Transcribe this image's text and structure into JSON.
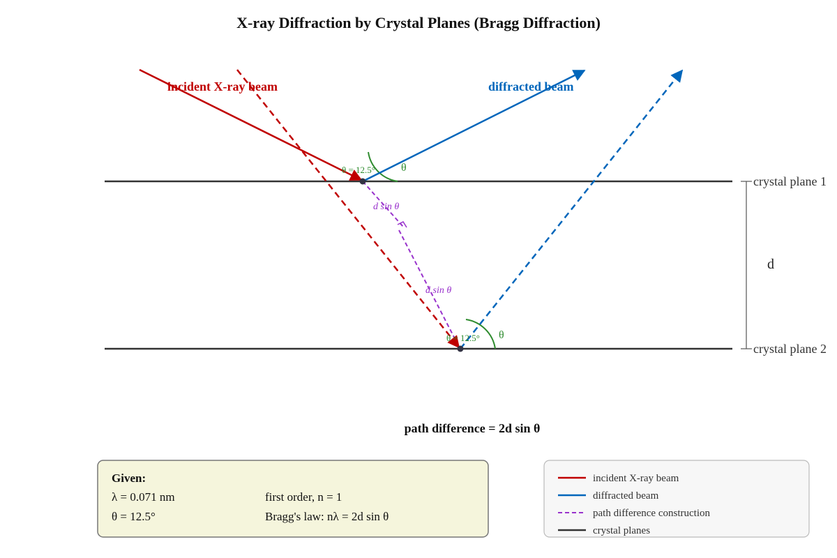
{
  "title": "X-ray Diffraction by Crystal Planes (Bragg Diffraction)",
  "colors": {
    "incident": "#c00000",
    "diffracted": "#0066bb",
    "path_difference": "#9933cc",
    "angle": "#2e8b2e",
    "planes": "#333333",
    "given_bg": "#f5f5dc",
    "legend_bg": "#f7f7f7"
  },
  "labels": {
    "incident_beam": "incident X-ray beam",
    "diffracted_beam": "diffracted beam",
    "plane_1": "crystal plane 1",
    "plane_2": "crystal plane 2",
    "spacing": "d",
    "angle_value_1": "θ = 12.5°",
    "angle_value_2": "θ = 12.5°",
    "theta_1": "θ",
    "theta_2": "θ",
    "d_sin_theta_1": "d sin θ",
    "d_sin_theta_2": "d sin θ",
    "path_difference": "path difference = 2d sin θ"
  },
  "given": {
    "heading": "Given:",
    "wavelength": "λ = 0.071 nm",
    "angle": "θ = 12.5°",
    "order": "first order, n = 1",
    "law": "Bragg's law: nλ = 2d sin θ"
  },
  "legend": [
    {
      "label": "incident X-ray beam",
      "style": "solid",
      "color_key": "incident"
    },
    {
      "label": "diffracted beam",
      "style": "solid",
      "color_key": "diffracted"
    },
    {
      "label": "path difference construction",
      "style": "dashed",
      "color_key": "path_difference"
    },
    {
      "label": "crystal planes",
      "style": "solid",
      "color_key": "planes"
    }
  ]
}
